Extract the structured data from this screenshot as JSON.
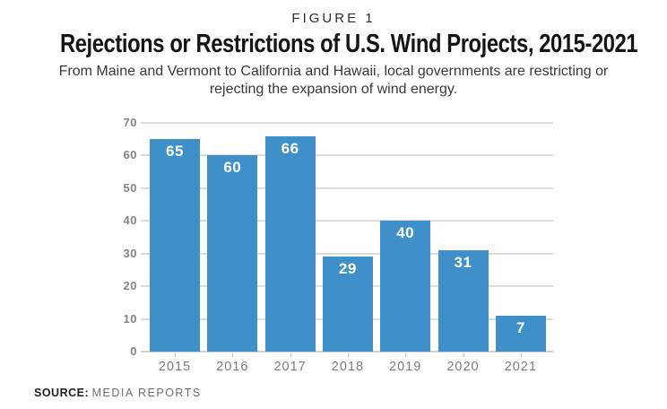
{
  "figure_label": "FIGURE 1",
  "title": "Rejections or Restrictions of U.S. Wind Projects, 2015-2021",
  "subtitle_lines": [
    "From Maine and Vermont to California and Hawaii, local governments are restricting or",
    "rejecting the expansion of wind energy."
  ],
  "source": {
    "label": "SOURCE:",
    "value": "MEDIA REPORTS"
  },
  "colors": {
    "bar": "#3f90c8",
    "grid": "#dcdcdc",
    "baseline": "#d2d2d2",
    "y_axis_label": "#828488",
    "x_axis_label": "#7a7b7e",
    "value_label": "#ffffff"
  },
  "chart_data": {
    "type": "bar",
    "title": "Rejections or Restrictions of U.S. Wind Projects, 2015-2021",
    "categories": [
      "2015",
      "2016",
      "2017",
      "2018",
      "2019",
      "2020",
      "2021"
    ],
    "values": [
      65,
      60,
      66,
      29,
      40,
      31,
      7
    ],
    "bar_heights_as_drawn": [
      65,
      60,
      66,
      29,
      40,
      31,
      11
    ],
    "xlabel": "",
    "ylabel": "",
    "ylim": [
      0,
      70
    ],
    "yticks": [
      0,
      10,
      20,
      30,
      40,
      50,
      60,
      70
    ],
    "grid": true,
    "legend": false
  }
}
